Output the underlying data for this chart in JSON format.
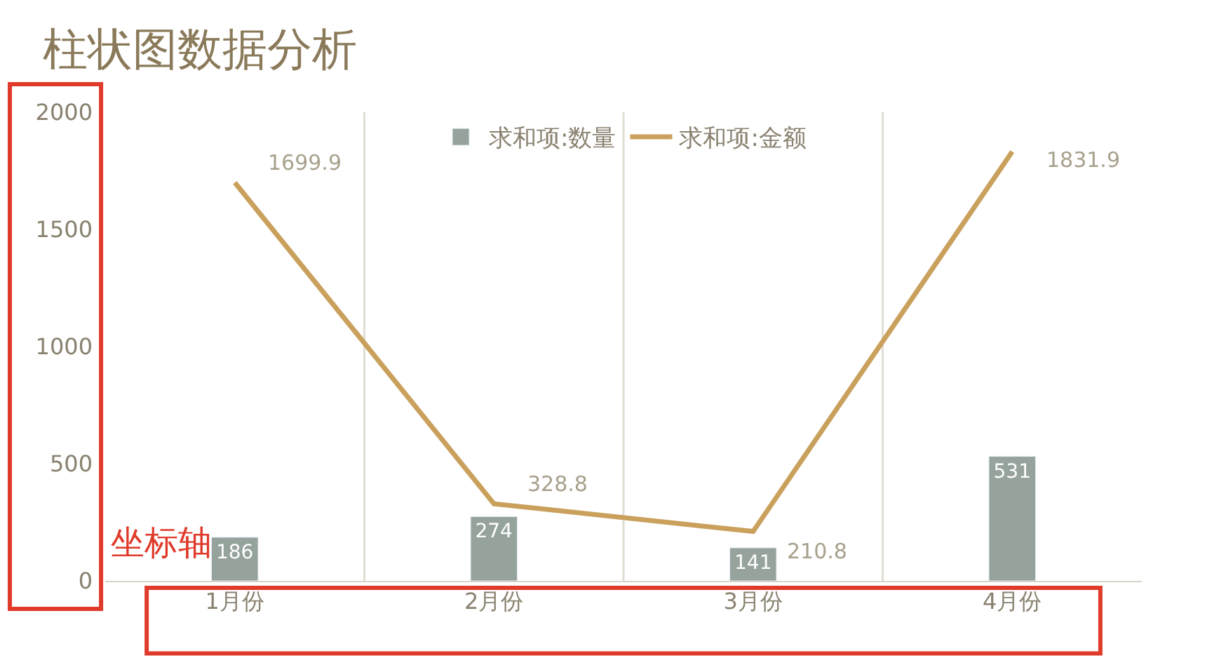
{
  "chart_data": {
    "type": "bar",
    "title": "柱状图数据分析",
    "categories": [
      "1月份",
      "2月份",
      "3月份",
      "4月份"
    ],
    "series": [
      {
        "name": "求和项:数量",
        "color": "#95a39c",
        "values": [
          186,
          274,
          141,
          531
        ]
      },
      {
        "name": "求和项:金额",
        "type": "line",
        "color": "#c9a05c",
        "values": [
          1699.9,
          328.8,
          210.8,
          1831.9
        ]
      }
    ],
    "ylim": [
      0,
      2000
    ],
    "yticks": [
      0,
      500,
      1000,
      1500,
      2000
    ],
    "grid": "x",
    "legend": "top",
    "data_labels": true,
    "marker": "none",
    "line_style": "solid",
    "annotations": [
      "坐标轴"
    ]
  }
}
